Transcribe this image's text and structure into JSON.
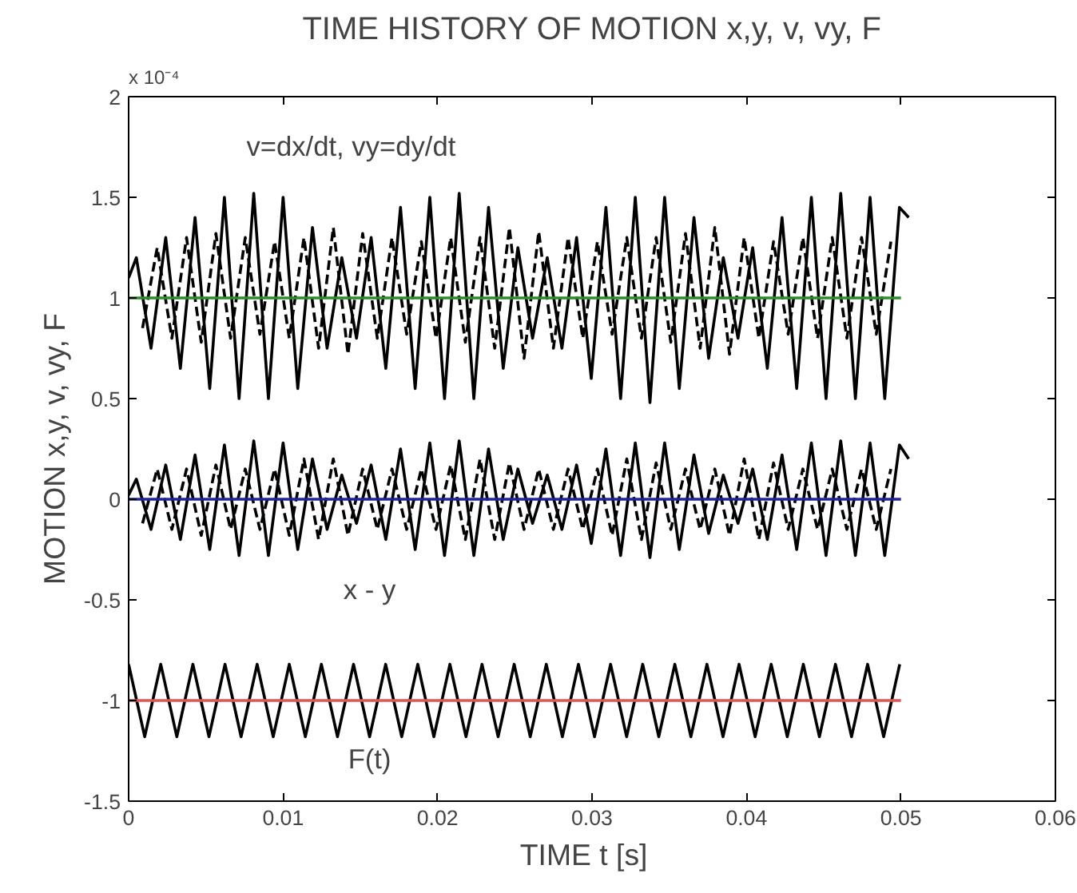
{
  "chart_data": {
    "type": "line",
    "title": "TIME HISTORY OF MOTION x,y, v, vy, F",
    "xlabel": "TIME  t  [s]",
    "ylabel": "MOTION x,y, v, vy, F",
    "xlim": [
      0,
      0.06
    ],
    "xticks": [
      0,
      0.01,
      0.02,
      0.03,
      0.04,
      0.05,
      0.06
    ],
    "ylim": [
      -1.5,
      2
    ],
    "yticks": [
      -1.5,
      -1,
      -0.5,
      0,
      0.5,
      1,
      1.5,
      2
    ],
    "grid": false,
    "marker": "none",
    "annotations": [
      "x 10⁻⁴",
      "v=dx/dt, vy=dy/dt",
      "x - y",
      "F(t)"
    ],
    "series": [
      {
        "color": "#000000",
        "line_style": "solid",
        "x": [
          0,
          0.0005,
          0.00145,
          0.0024,
          0.00335,
          0.0043,
          0.00525,
          0.0062,
          0.00715,
          0.0081,
          0.00905,
          0.01,
          0.01095,
          0.0119,
          0.01285,
          0.0138,
          0.01475,
          0.0157,
          0.01665,
          0.0176,
          0.01855,
          0.0195,
          0.02045,
          0.0214,
          0.02235,
          0.0233,
          0.02425,
          0.0252,
          0.02615,
          0.0271,
          0.02805,
          0.029,
          0.02995,
          0.0309,
          0.03185,
          0.0328,
          0.03375,
          0.0347,
          0.03565,
          0.0366,
          0.03755,
          0.0385,
          0.03945,
          0.0404,
          0.04135,
          0.0423,
          0.04325,
          0.0442,
          0.04515,
          0.0461,
          0.04705,
          0.048,
          0.04895,
          0.0499,
          0.0505
        ],
        "values": [
          1.1,
          1.2,
          0.75,
          1.3,
          0.65,
          1.4,
          0.55,
          1.5,
          0.5,
          1.52,
          0.5,
          1.5,
          0.55,
          1.35,
          0.75,
          1.2,
          0.8,
          1.3,
          0.65,
          1.45,
          0.55,
          1.5,
          0.5,
          1.52,
          0.5,
          1.45,
          0.65,
          1.25,
          0.8,
          1.2,
          0.75,
          1.3,
          0.6,
          1.45,
          0.5,
          1.5,
          0.48,
          1.5,
          0.55,
          1.4,
          0.7,
          1.2,
          0.8,
          1.25,
          0.65,
          1.4,
          0.55,
          1.5,
          0.5,
          1.52,
          0.5,
          1.5,
          0.5,
          1.45,
          1.4
        ]
      },
      {
        "color": "#000000",
        "line_style": "dashed",
        "x": [
          0.0009,
          0.00185,
          0.0028,
          0.00375,
          0.0047,
          0.00565,
          0.0066,
          0.00755,
          0.0085,
          0.00945,
          0.0104,
          0.01135,
          0.0123,
          0.01325,
          0.0142,
          0.01515,
          0.0161,
          0.01705,
          0.018,
          0.01895,
          0.0199,
          0.02085,
          0.0218,
          0.02275,
          0.0237,
          0.02465,
          0.0256,
          0.02655,
          0.0275,
          0.02845,
          0.0294,
          0.03035,
          0.0313,
          0.03225,
          0.0332,
          0.03415,
          0.0351,
          0.03605,
          0.037,
          0.03795,
          0.0389,
          0.03985,
          0.0408,
          0.04175,
          0.0427,
          0.04365,
          0.0446,
          0.04555,
          0.0465,
          0.04745,
          0.0484,
          0.04935
        ],
        "values": [
          0.85,
          1.25,
          0.8,
          1.3,
          0.78,
          1.32,
          0.8,
          1.3,
          0.82,
          1.28,
          0.8,
          1.3,
          0.75,
          1.35,
          0.72,
          1.32,
          0.8,
          1.3,
          0.82,
          1.28,
          0.8,
          1.3,
          0.78,
          1.3,
          0.75,
          1.35,
          0.7,
          1.33,
          0.75,
          1.3,
          0.8,
          1.28,
          0.82,
          1.3,
          0.8,
          1.3,
          0.78,
          1.32,
          0.75,
          1.35,
          0.72,
          1.3,
          0.8,
          1.28,
          0.82,
          1.3,
          0.8,
          1.3,
          0.8,
          1.3,
          0.82,
          1.28
        ]
      },
      {
        "color": "#000000",
        "line_style": "solid",
        "x": [
          0,
          0.0005,
          0.00145,
          0.0024,
          0.00335,
          0.0043,
          0.00525,
          0.0062,
          0.00715,
          0.0081,
          0.00905,
          0.01,
          0.01095,
          0.0119,
          0.01285,
          0.0138,
          0.01475,
          0.0157,
          0.01665,
          0.0176,
          0.01855,
          0.0195,
          0.02045,
          0.0214,
          0.02235,
          0.0233,
          0.02425,
          0.0252,
          0.02615,
          0.0271,
          0.02805,
          0.029,
          0.02995,
          0.0309,
          0.03185,
          0.0328,
          0.03375,
          0.0347,
          0.03565,
          0.0366,
          0.03755,
          0.0385,
          0.03945,
          0.0404,
          0.04135,
          0.0423,
          0.04325,
          0.0442,
          0.04515,
          0.0461,
          0.04705,
          0.048,
          0.04895,
          0.0499,
          0.0505
        ],
        "values": [
          0.02,
          0.1,
          -0.15,
          0.17,
          -0.2,
          0.22,
          -0.25,
          0.27,
          -0.28,
          0.29,
          -0.28,
          0.28,
          -0.25,
          0.2,
          -0.15,
          0.12,
          -0.12,
          0.17,
          -0.2,
          0.25,
          -0.25,
          0.28,
          -0.28,
          0.29,
          -0.28,
          0.25,
          -0.2,
          0.15,
          -0.12,
          0.12,
          -0.15,
          0.17,
          -0.22,
          0.25,
          -0.28,
          0.28,
          -0.29,
          0.28,
          -0.25,
          0.22,
          -0.17,
          0.12,
          -0.12,
          0.15,
          -0.2,
          0.22,
          -0.25,
          0.28,
          -0.28,
          0.29,
          -0.28,
          0.28,
          -0.28,
          0.27,
          0.2
        ]
      },
      {
        "color": "#000000",
        "line_style": "dashed",
        "x": [
          0.0009,
          0.00185,
          0.0028,
          0.00375,
          0.0047,
          0.00565,
          0.0066,
          0.00755,
          0.0085,
          0.00945,
          0.0104,
          0.01135,
          0.0123,
          0.01325,
          0.0142,
          0.01515,
          0.0161,
          0.01705,
          0.018,
          0.01895,
          0.0199,
          0.02085,
          0.0218,
          0.02275,
          0.0237,
          0.02465,
          0.0256,
          0.02655,
          0.0275,
          0.02845,
          0.0294,
          0.03035,
          0.0313,
          0.03225,
          0.0332,
          0.03415,
          0.0351,
          0.03605,
          0.037,
          0.03795,
          0.0389,
          0.03985,
          0.0408,
          0.04175,
          0.0427,
          0.04365,
          0.0446,
          0.04555,
          0.0465,
          0.04745,
          0.0484,
          0.04935
        ],
        "values": [
          -0.12,
          0.15,
          -0.15,
          0.15,
          -0.18,
          0.17,
          -0.15,
          0.15,
          -0.15,
          0.15,
          -0.18,
          0.2,
          -0.2,
          0.2,
          -0.18,
          0.15,
          -0.15,
          0.15,
          -0.15,
          0.15,
          -0.15,
          0.17,
          -0.2,
          0.2,
          -0.2,
          0.18,
          -0.15,
          0.15,
          -0.15,
          0.15,
          -0.15,
          0.15,
          -0.18,
          0.2,
          -0.2,
          0.18,
          -0.15,
          0.15,
          -0.15,
          0.15,
          -0.18,
          0.2,
          -0.2,
          0.18,
          -0.15,
          0.15,
          -0.15,
          0.15,
          -0.15,
          0.15,
          -0.15,
          0.15
        ]
      },
      {
        "color": "#000000",
        "line_style": "solid",
        "x": [
          0,
          0.00104,
          0.00208,
          0.00312,
          0.00416,
          0.0052,
          0.00624,
          0.00728,
          0.00832,
          0.00936,
          0.0104,
          0.01144,
          0.01248,
          0.01352,
          0.01456,
          0.0156,
          0.01664,
          0.01768,
          0.01872,
          0.01976,
          0.0208,
          0.02184,
          0.02288,
          0.02392,
          0.02496,
          0.026,
          0.02704,
          0.02808,
          0.02912,
          0.03016,
          0.0312,
          0.03224,
          0.03328,
          0.03432,
          0.03536,
          0.0364,
          0.03744,
          0.03848,
          0.03952,
          0.04056,
          0.0416,
          0.04264,
          0.04368,
          0.04472,
          0.04576,
          0.0468,
          0.04784,
          0.04888,
          0.04992
        ],
        "values": [
          -0.82,
          -1.18,
          -0.82,
          -1.18,
          -0.82,
          -1.18,
          -0.82,
          -1.18,
          -0.82,
          -1.18,
          -0.82,
          -1.18,
          -0.82,
          -1.18,
          -0.82,
          -1.18,
          -0.82,
          -1.18,
          -0.82,
          -1.18,
          -0.82,
          -1.18,
          -0.82,
          -1.18,
          -0.82,
          -1.18,
          -0.82,
          -1.18,
          -0.82,
          -1.18,
          -0.82,
          -1.18,
          -0.82,
          -1.18,
          -0.82,
          -1.18,
          -0.82,
          -1.18,
          -0.82,
          -1.18,
          -0.82,
          -1.18,
          -0.82,
          -1.18,
          -0.82,
          -1.18,
          -0.82,
          -1.18,
          -0.82
        ]
      },
      {
        "color": "#2e8b2e",
        "line_style": "solid",
        "x": [
          0,
          0.05
        ],
        "values": [
          1,
          1
        ]
      },
      {
        "color": "#2020a0",
        "line_style": "solid",
        "x": [
          0,
          0.05
        ],
        "values": [
          0,
          0
        ]
      },
      {
        "color": "#e05555",
        "line_style": "solid",
        "x": [
          0,
          0.05
        ],
        "values": [
          -1,
          -1
        ]
      }
    ]
  }
}
